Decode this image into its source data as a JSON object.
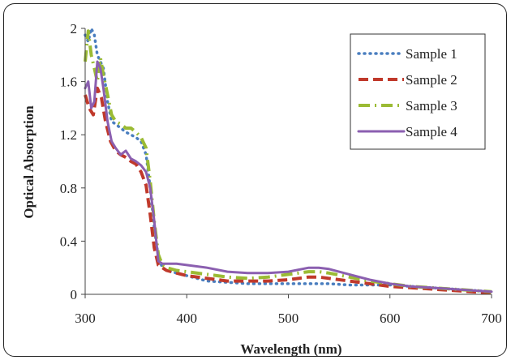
{
  "chart_data": {
    "type": "line",
    "title": "",
    "xlabel": "Wavelength (nm)",
    "ylabel": "Optical Absorption",
    "xlim": [
      300,
      700
    ],
    "ylim": [
      0,
      2
    ],
    "xticks": [
      "300",
      "400",
      "500",
      "600",
      "700"
    ],
    "yticks": [
      "0",
      "0.4",
      "0.8",
      "1.2",
      "1.6",
      "2"
    ],
    "xtick_values": [
      300,
      400,
      500,
      600,
      700
    ],
    "ytick_values": [
      0,
      0.4,
      0.8,
      1.2,
      1.6,
      2.0
    ],
    "grid": false,
    "legend_position": "top-right",
    "series": [
      {
        "name": "Sample 1",
        "color": "#4a7ebf",
        "dash": "dotted",
        "x": [
          300,
          303,
          306,
          309,
          312,
          315,
          318,
          322,
          326,
          330,
          335,
          340,
          345,
          350,
          355,
          360,
          364,
          368,
          372,
          376,
          380,
          390,
          400,
          420,
          440,
          460,
          480,
          500,
          520,
          530,
          540,
          560,
          580,
          600,
          620,
          640,
          660,
          680,
          700
        ],
        "y": [
          1.95,
          1.9,
          2.0,
          1.95,
          1.8,
          1.75,
          1.7,
          1.45,
          1.3,
          1.28,
          1.25,
          1.22,
          1.2,
          1.18,
          1.15,
          1.05,
          0.8,
          0.5,
          0.28,
          0.2,
          0.18,
          0.16,
          0.14,
          0.1,
          0.09,
          0.08,
          0.08,
          0.08,
          0.08,
          0.08,
          0.08,
          0.07,
          0.07,
          0.07,
          0.06,
          0.05,
          0.04,
          0.03,
          0.02
        ]
      },
      {
        "name": "Sample 2",
        "color": "#c0392b",
        "dash": "dashed",
        "x": [
          300,
          304,
          308,
          312,
          316,
          320,
          325,
          330,
          335,
          340,
          345,
          350,
          355,
          360,
          364,
          368,
          372,
          376,
          380,
          390,
          400,
          420,
          440,
          460,
          480,
          500,
          520,
          530,
          540,
          560,
          580,
          600,
          620,
          640,
          660,
          680,
          700
        ],
        "y": [
          1.5,
          1.4,
          1.35,
          1.55,
          1.48,
          1.3,
          1.15,
          1.08,
          1.05,
          1.03,
          1.0,
          0.98,
          0.92,
          0.82,
          0.6,
          0.35,
          0.22,
          0.2,
          0.18,
          0.16,
          0.14,
          0.12,
          0.1,
          0.1,
          0.1,
          0.11,
          0.13,
          0.13,
          0.12,
          0.1,
          0.08,
          0.06,
          0.05,
          0.04,
          0.03,
          0.02,
          0.01
        ]
      },
      {
        "name": "Sample 3",
        "color": "#9bbb34",
        "dash": "dashdot",
        "x": [
          300,
          303,
          306,
          309,
          312,
          315,
          318,
          322,
          326,
          330,
          335,
          340,
          345,
          350,
          355,
          360,
          364,
          368,
          372,
          376,
          380,
          390,
          400,
          420,
          440,
          460,
          480,
          500,
          520,
          530,
          540,
          560,
          580,
          600,
          620,
          640,
          660,
          680,
          700
        ],
        "y": [
          1.75,
          1.98,
          1.8,
          1.7,
          1.6,
          1.78,
          1.65,
          1.5,
          1.35,
          1.3,
          1.28,
          1.25,
          1.25,
          1.22,
          1.18,
          1.1,
          0.85,
          0.55,
          0.3,
          0.22,
          0.2,
          0.18,
          0.17,
          0.15,
          0.13,
          0.12,
          0.13,
          0.15,
          0.17,
          0.17,
          0.16,
          0.13,
          0.1,
          0.08,
          0.06,
          0.05,
          0.04,
          0.03,
          0.02
        ]
      },
      {
        "name": "Sample 4",
        "color": "#8b5fb0",
        "dash": "solid",
        "x": [
          300,
          303,
          306,
          309,
          312,
          315,
          318,
          322,
          326,
          330,
          335,
          340,
          345,
          350,
          355,
          360,
          364,
          368,
          372,
          376,
          380,
          390,
          400,
          420,
          440,
          460,
          480,
          500,
          520,
          530,
          540,
          560,
          580,
          600,
          620,
          640,
          660,
          680,
          700
        ],
        "y": [
          1.55,
          1.6,
          1.4,
          1.45,
          1.75,
          1.7,
          1.55,
          1.3,
          1.15,
          1.1,
          1.05,
          1.08,
          1.02,
          1.0,
          0.97,
          0.92,
          0.8,
          0.55,
          0.25,
          0.23,
          0.23,
          0.23,
          0.22,
          0.2,
          0.17,
          0.16,
          0.16,
          0.17,
          0.2,
          0.2,
          0.19,
          0.15,
          0.11,
          0.08,
          0.06,
          0.05,
          0.04,
          0.03,
          0.02
        ]
      }
    ]
  }
}
